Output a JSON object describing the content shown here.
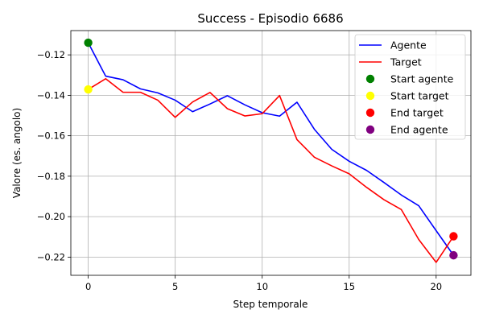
{
  "chart_data": {
    "type": "line",
    "title": "Success - Episodio 6686",
    "xlabel": "Step temporale",
    "ylabel": "Valore (es. angolo)",
    "xlim": [
      -1,
      22
    ],
    "ylim": [
      -0.229,
      -0.108
    ],
    "xticks": [
      0,
      5,
      10,
      15,
      20
    ],
    "xtick_labels": [
      "0",
      "5",
      "10",
      "15",
      "20"
    ],
    "yticks": [
      -0.22,
      -0.2,
      -0.18,
      -0.16,
      -0.14,
      -0.12
    ],
    "ytick_labels": [
      "−0.22",
      "−0.20",
      "−0.18",
      "−0.16",
      "−0.14",
      "−0.12"
    ],
    "grid": true,
    "legend_position": "top-right",
    "series": [
      {
        "name": "Agente",
        "kind": "line",
        "color": "#0000ff",
        "x": [
          0,
          1,
          2,
          3,
          4,
          5,
          6,
          7,
          8,
          9,
          10,
          11,
          12,
          13,
          14,
          15,
          16,
          17,
          18,
          19,
          20,
          21
        ],
        "y": [
          -0.114,
          -0.1305,
          -0.1323,
          -0.1368,
          -0.1388,
          -0.1424,
          -0.1481,
          -0.1443,
          -0.1402,
          -0.1447,
          -0.1486,
          -0.1503,
          -0.1434,
          -0.1568,
          -0.1667,
          -0.1726,
          -0.1771,
          -0.1831,
          -0.1893,
          -0.1946,
          -0.2069,
          -0.2191
        ]
      },
      {
        "name": "Target",
        "kind": "line",
        "color": "#ff0000",
        "x": [
          0,
          1,
          2,
          3,
          4,
          5,
          6,
          7,
          8,
          9,
          10,
          11,
          12,
          13,
          14,
          15,
          16,
          17,
          18,
          19,
          20,
          21
        ],
        "y": [
          -0.1371,
          -0.1318,
          -0.1385,
          -0.1385,
          -0.1424,
          -0.1509,
          -0.1433,
          -0.1386,
          -0.1466,
          -0.1502,
          -0.1491,
          -0.1401,
          -0.1619,
          -0.1706,
          -0.1749,
          -0.1788,
          -0.1855,
          -0.1916,
          -0.1965,
          -0.2113,
          -0.2226,
          -0.2097
        ]
      },
      {
        "name": "Start agente",
        "kind": "point",
        "color": "#008000",
        "x": [
          0
        ],
        "y": [
          -0.114
        ]
      },
      {
        "name": "Start target",
        "kind": "point",
        "color": "#ffff00",
        "x": [
          0
        ],
        "y": [
          -0.1371
        ]
      },
      {
        "name": "End target",
        "kind": "point",
        "color": "#ff0000",
        "x": [
          21
        ],
        "y": [
          -0.2097
        ]
      },
      {
        "name": "End agente",
        "kind": "point",
        "color": "#800080",
        "x": [
          21
        ],
        "y": [
          -0.2191
        ]
      }
    ]
  }
}
